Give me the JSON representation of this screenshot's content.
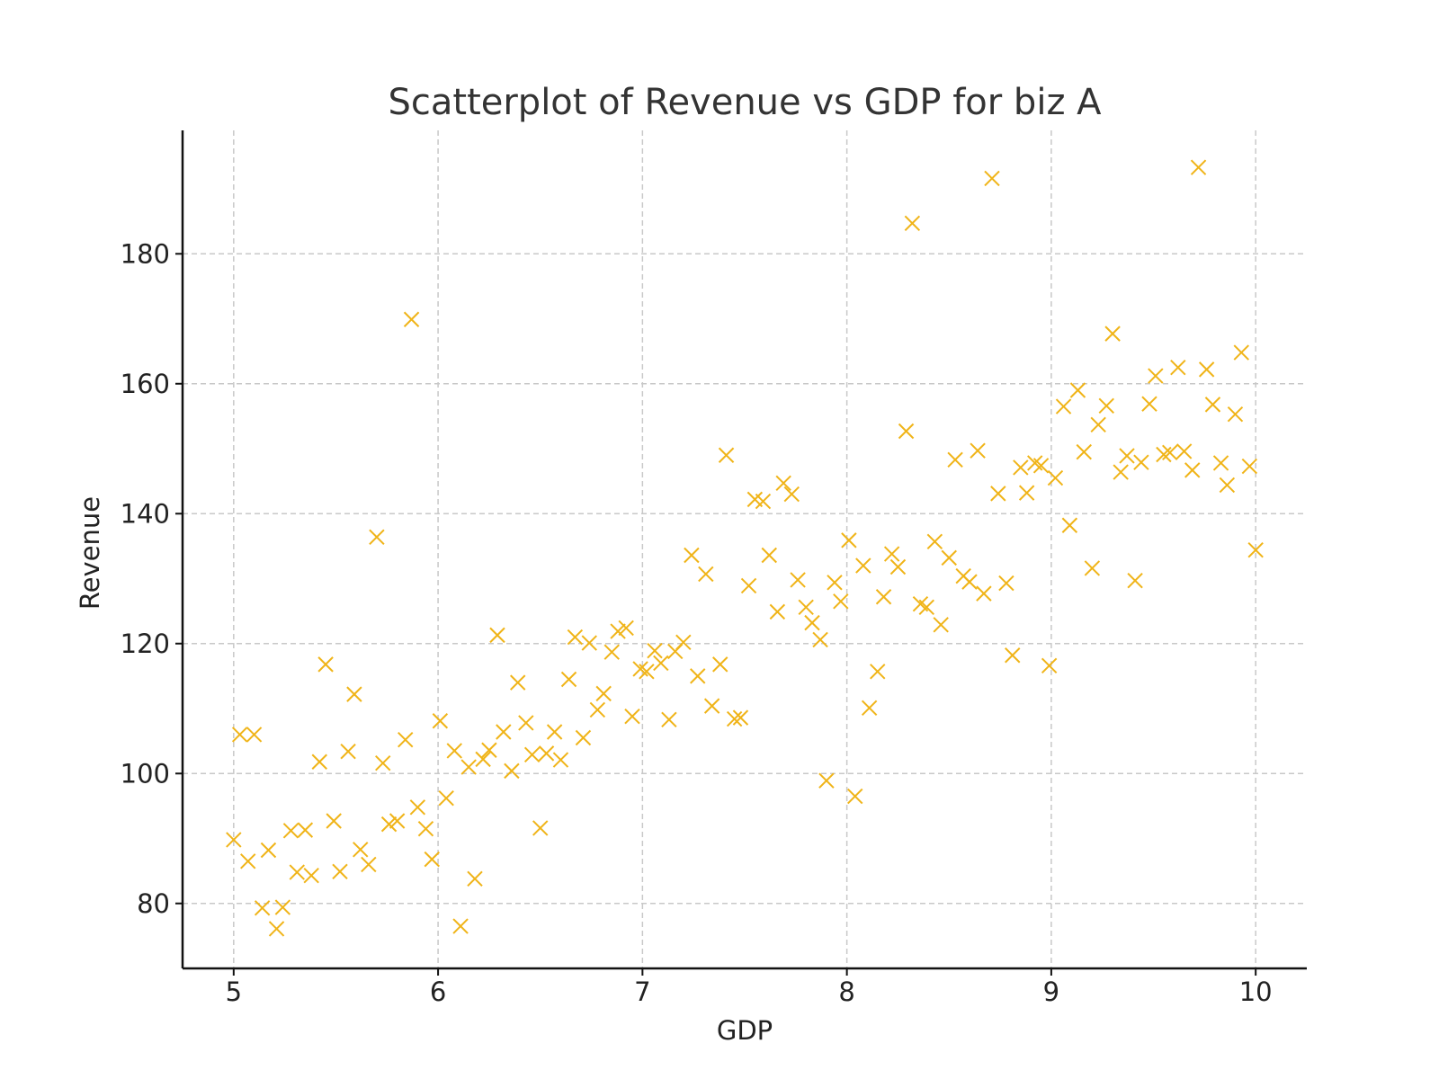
{
  "chart_data": {
    "type": "scatter",
    "title": "Scatterplot of Revenue vs GDP for biz A",
    "xlabel": "GDP",
    "ylabel": "Revenue",
    "xlim": [
      4.75,
      10.25
    ],
    "ylim": [
      70,
      199
    ],
    "xticks": [
      5,
      6,
      7,
      8,
      9,
      10
    ],
    "yticks": [
      80,
      100,
      120,
      140,
      160,
      180
    ],
    "grid": true,
    "marker": "x",
    "color": "#f0b418",
    "series": [
      {
        "points": [
          [
            5.0,
            89.8
          ],
          [
            5.03,
            106.0
          ],
          [
            5.07,
            86.5
          ],
          [
            5.1,
            106.0
          ],
          [
            5.14,
            79.3
          ],
          [
            5.17,
            88.2
          ],
          [
            5.21,
            76.1
          ],
          [
            5.24,
            79.4
          ],
          [
            5.28,
            91.2
          ],
          [
            5.31,
            84.8
          ],
          [
            5.35,
            91.3
          ],
          [
            5.38,
            84.3
          ],
          [
            5.42,
            101.8
          ],
          [
            5.45,
            116.8
          ],
          [
            5.49,
            92.7
          ],
          [
            5.52,
            84.9
          ],
          [
            5.56,
            103.4
          ],
          [
            5.59,
            112.2
          ],
          [
            5.62,
            88.3
          ],
          [
            5.66,
            86.0
          ],
          [
            5.7,
            136.4
          ],
          [
            5.73,
            101.6
          ],
          [
            5.76,
            92.2
          ],
          [
            5.8,
            92.7
          ],
          [
            5.84,
            105.2
          ],
          [
            5.87,
            169.9
          ],
          [
            5.9,
            94.8
          ],
          [
            5.94,
            91.5
          ],
          [
            5.97,
            86.8
          ],
          [
            6.01,
            108.1
          ],
          [
            6.04,
            96.2
          ],
          [
            6.08,
            103.5
          ],
          [
            6.11,
            76.5
          ],
          [
            6.15,
            101.0
          ],
          [
            6.18,
            83.8
          ],
          [
            6.22,
            102.2
          ],
          [
            6.25,
            103.6
          ],
          [
            6.29,
            121.3
          ],
          [
            6.32,
            106.4
          ],
          [
            6.36,
            100.4
          ],
          [
            6.39,
            114.0
          ],
          [
            6.43,
            107.8
          ],
          [
            6.46,
            102.9
          ],
          [
            6.5,
            91.6
          ],
          [
            6.53,
            103.1
          ],
          [
            6.57,
            106.4
          ],
          [
            6.6,
            102.1
          ],
          [
            6.64,
            114.5
          ],
          [
            6.67,
            121.0
          ],
          [
            6.71,
            105.5
          ],
          [
            6.74,
            120.1
          ],
          [
            6.78,
            109.8
          ],
          [
            6.81,
            112.3
          ],
          [
            6.85,
            118.7
          ],
          [
            6.88,
            121.9
          ],
          [
            6.92,
            122.4
          ],
          [
            6.95,
            108.8
          ],
          [
            6.99,
            116.1
          ],
          [
            7.02,
            115.7
          ],
          [
            7.06,
            118.9
          ],
          [
            7.09,
            117.0
          ],
          [
            7.13,
            108.3
          ],
          [
            7.16,
            118.8
          ],
          [
            7.2,
            120.2
          ],
          [
            7.24,
            133.6
          ],
          [
            7.27,
            115.0
          ],
          [
            7.31,
            130.7
          ],
          [
            7.34,
            110.4
          ],
          [
            7.38,
            116.8
          ],
          [
            7.41,
            149.0
          ],
          [
            7.45,
            108.4
          ],
          [
            7.48,
            108.6
          ],
          [
            7.52,
            128.9
          ],
          [
            7.55,
            142.2
          ],
          [
            7.59,
            141.9
          ],
          [
            7.62,
            133.6
          ],
          [
            7.66,
            124.9
          ],
          [
            7.69,
            144.7
          ],
          [
            7.73,
            143.0
          ],
          [
            7.76,
            129.8
          ],
          [
            7.8,
            125.6
          ],
          [
            7.83,
            123.2
          ],
          [
            7.87,
            120.6
          ],
          [
            7.9,
            98.9
          ],
          [
            7.94,
            129.4
          ],
          [
            7.97,
            126.5
          ],
          [
            8.01,
            135.9
          ],
          [
            8.04,
            96.5
          ],
          [
            8.08,
            132.0
          ],
          [
            8.11,
            110.1
          ],
          [
            8.15,
            115.7
          ],
          [
            8.18,
            127.2
          ],
          [
            8.22,
            133.8
          ],
          [
            8.25,
            131.8
          ],
          [
            8.29,
            152.7
          ],
          [
            8.32,
            184.7
          ],
          [
            8.36,
            126.1
          ],
          [
            8.39,
            125.6
          ],
          [
            8.43,
            135.7
          ],
          [
            8.46,
            122.9
          ],
          [
            8.5,
            133.2
          ],
          [
            8.53,
            148.3
          ],
          [
            8.57,
            130.4
          ],
          [
            8.6,
            129.5
          ],
          [
            8.64,
            149.7
          ],
          [
            8.67,
            127.7
          ],
          [
            8.71,
            191.6
          ],
          [
            8.74,
            143.1
          ],
          [
            8.78,
            129.3
          ],
          [
            8.81,
            118.2
          ],
          [
            8.85,
            147.1
          ],
          [
            8.88,
            143.2
          ],
          [
            8.92,
            147.8
          ],
          [
            8.95,
            147.4
          ],
          [
            8.99,
            116.6
          ],
          [
            9.02,
            145.5
          ],
          [
            9.06,
            156.5
          ],
          [
            9.09,
            138.2
          ],
          [
            9.13,
            159.0
          ],
          [
            9.16,
            149.5
          ],
          [
            9.2,
            131.6
          ],
          [
            9.23,
            153.7
          ],
          [
            9.27,
            156.6
          ],
          [
            9.3,
            167.7
          ],
          [
            9.34,
            146.4
          ],
          [
            9.37,
            148.9
          ],
          [
            9.41,
            129.7
          ],
          [
            9.44,
            147.9
          ],
          [
            9.48,
            156.9
          ],
          [
            9.51,
            161.2
          ],
          [
            9.55,
            149.1
          ],
          [
            9.58,
            149.4
          ],
          [
            9.62,
            162.5
          ],
          [
            9.65,
            149.6
          ],
          [
            9.69,
            146.7
          ],
          [
            9.72,
            193.3
          ],
          [
            9.76,
            162.2
          ],
          [
            9.79,
            156.8
          ],
          [
            9.83,
            147.8
          ],
          [
            9.86,
            144.4
          ],
          [
            9.9,
            155.3
          ],
          [
            9.93,
            164.8
          ],
          [
            9.97,
            147.3
          ],
          [
            10.0,
            134.4
          ]
        ]
      }
    ]
  }
}
